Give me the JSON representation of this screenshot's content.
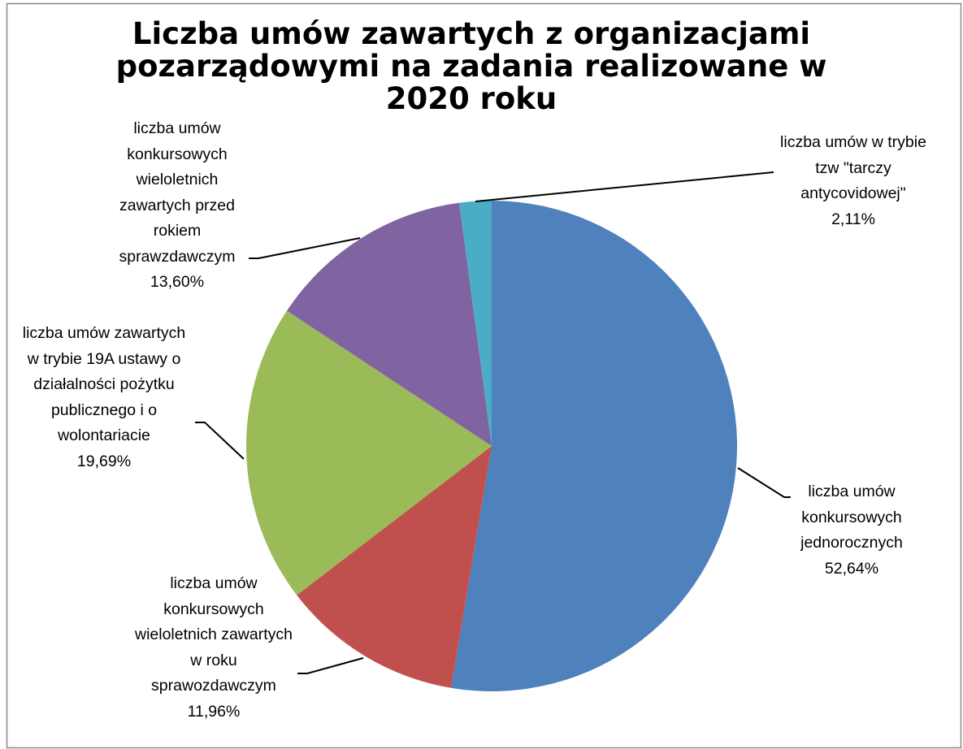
{
  "chart_data": {
    "type": "pie",
    "title": "Liczba umów zawartych z organizacjami pozarządowymi na zadania realizowane w 2020 roku",
    "categories": [
      "liczba umów konkursowych jednorocznych",
      "liczba umów konkursowych wieloletnich zawartych w roku sprawozdawczym",
      "liczba umów zawartych w trybie 19A ustawy o działalności pożytku publicznego i o wolontariacie",
      "liczba umów konkursowych wieloletnich zawartych przed rokiem sprawzdawczym",
      "liczba umów w trybie tzw \"tarczy antycovidowej\""
    ],
    "values": [
      52.64,
      11.96,
      19.69,
      13.6,
      2.11
    ],
    "value_labels": [
      "52,64%",
      "11,96%",
      "19,69%",
      "13,60%",
      "2,11%"
    ],
    "colors": [
      "#4f81bd",
      "#c0504d",
      "#9bbb59",
      "#8064a2",
      "#4bacc6"
    ]
  }
}
